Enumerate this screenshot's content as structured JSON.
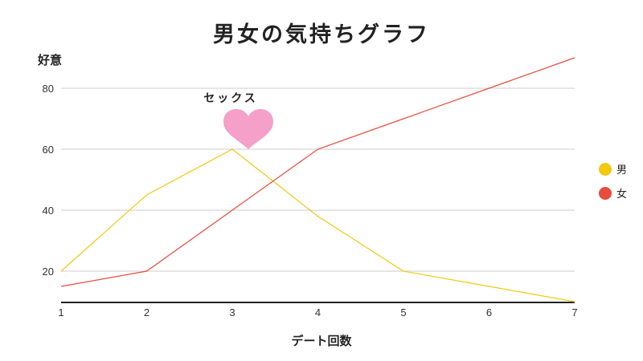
{
  "chart_data": {
    "type": "line",
    "title": "男女の気持ちグラフ",
    "xlabel": "デート回数",
    "ylabel": "好意",
    "categories": [
      1,
      2,
      3,
      4,
      5,
      6,
      7
    ],
    "ylim": [
      10,
      90
    ],
    "yticks": [
      20,
      40,
      60,
      80
    ],
    "grid": true,
    "legend_position": "right",
    "series": [
      {
        "name": "男",
        "color": "#f2c811",
        "values": [
          20,
          45,
          60,
          38,
          20,
          15,
          10
        ]
      },
      {
        "name": "女",
        "color": "#e84c3d",
        "values": [
          15,
          20,
          40,
          60,
          70,
          80,
          90
        ]
      }
    ],
    "annotation": {
      "text": "セックス",
      "x": 3,
      "icon": "heart-icon",
      "color": "#f4a0c8"
    }
  }
}
